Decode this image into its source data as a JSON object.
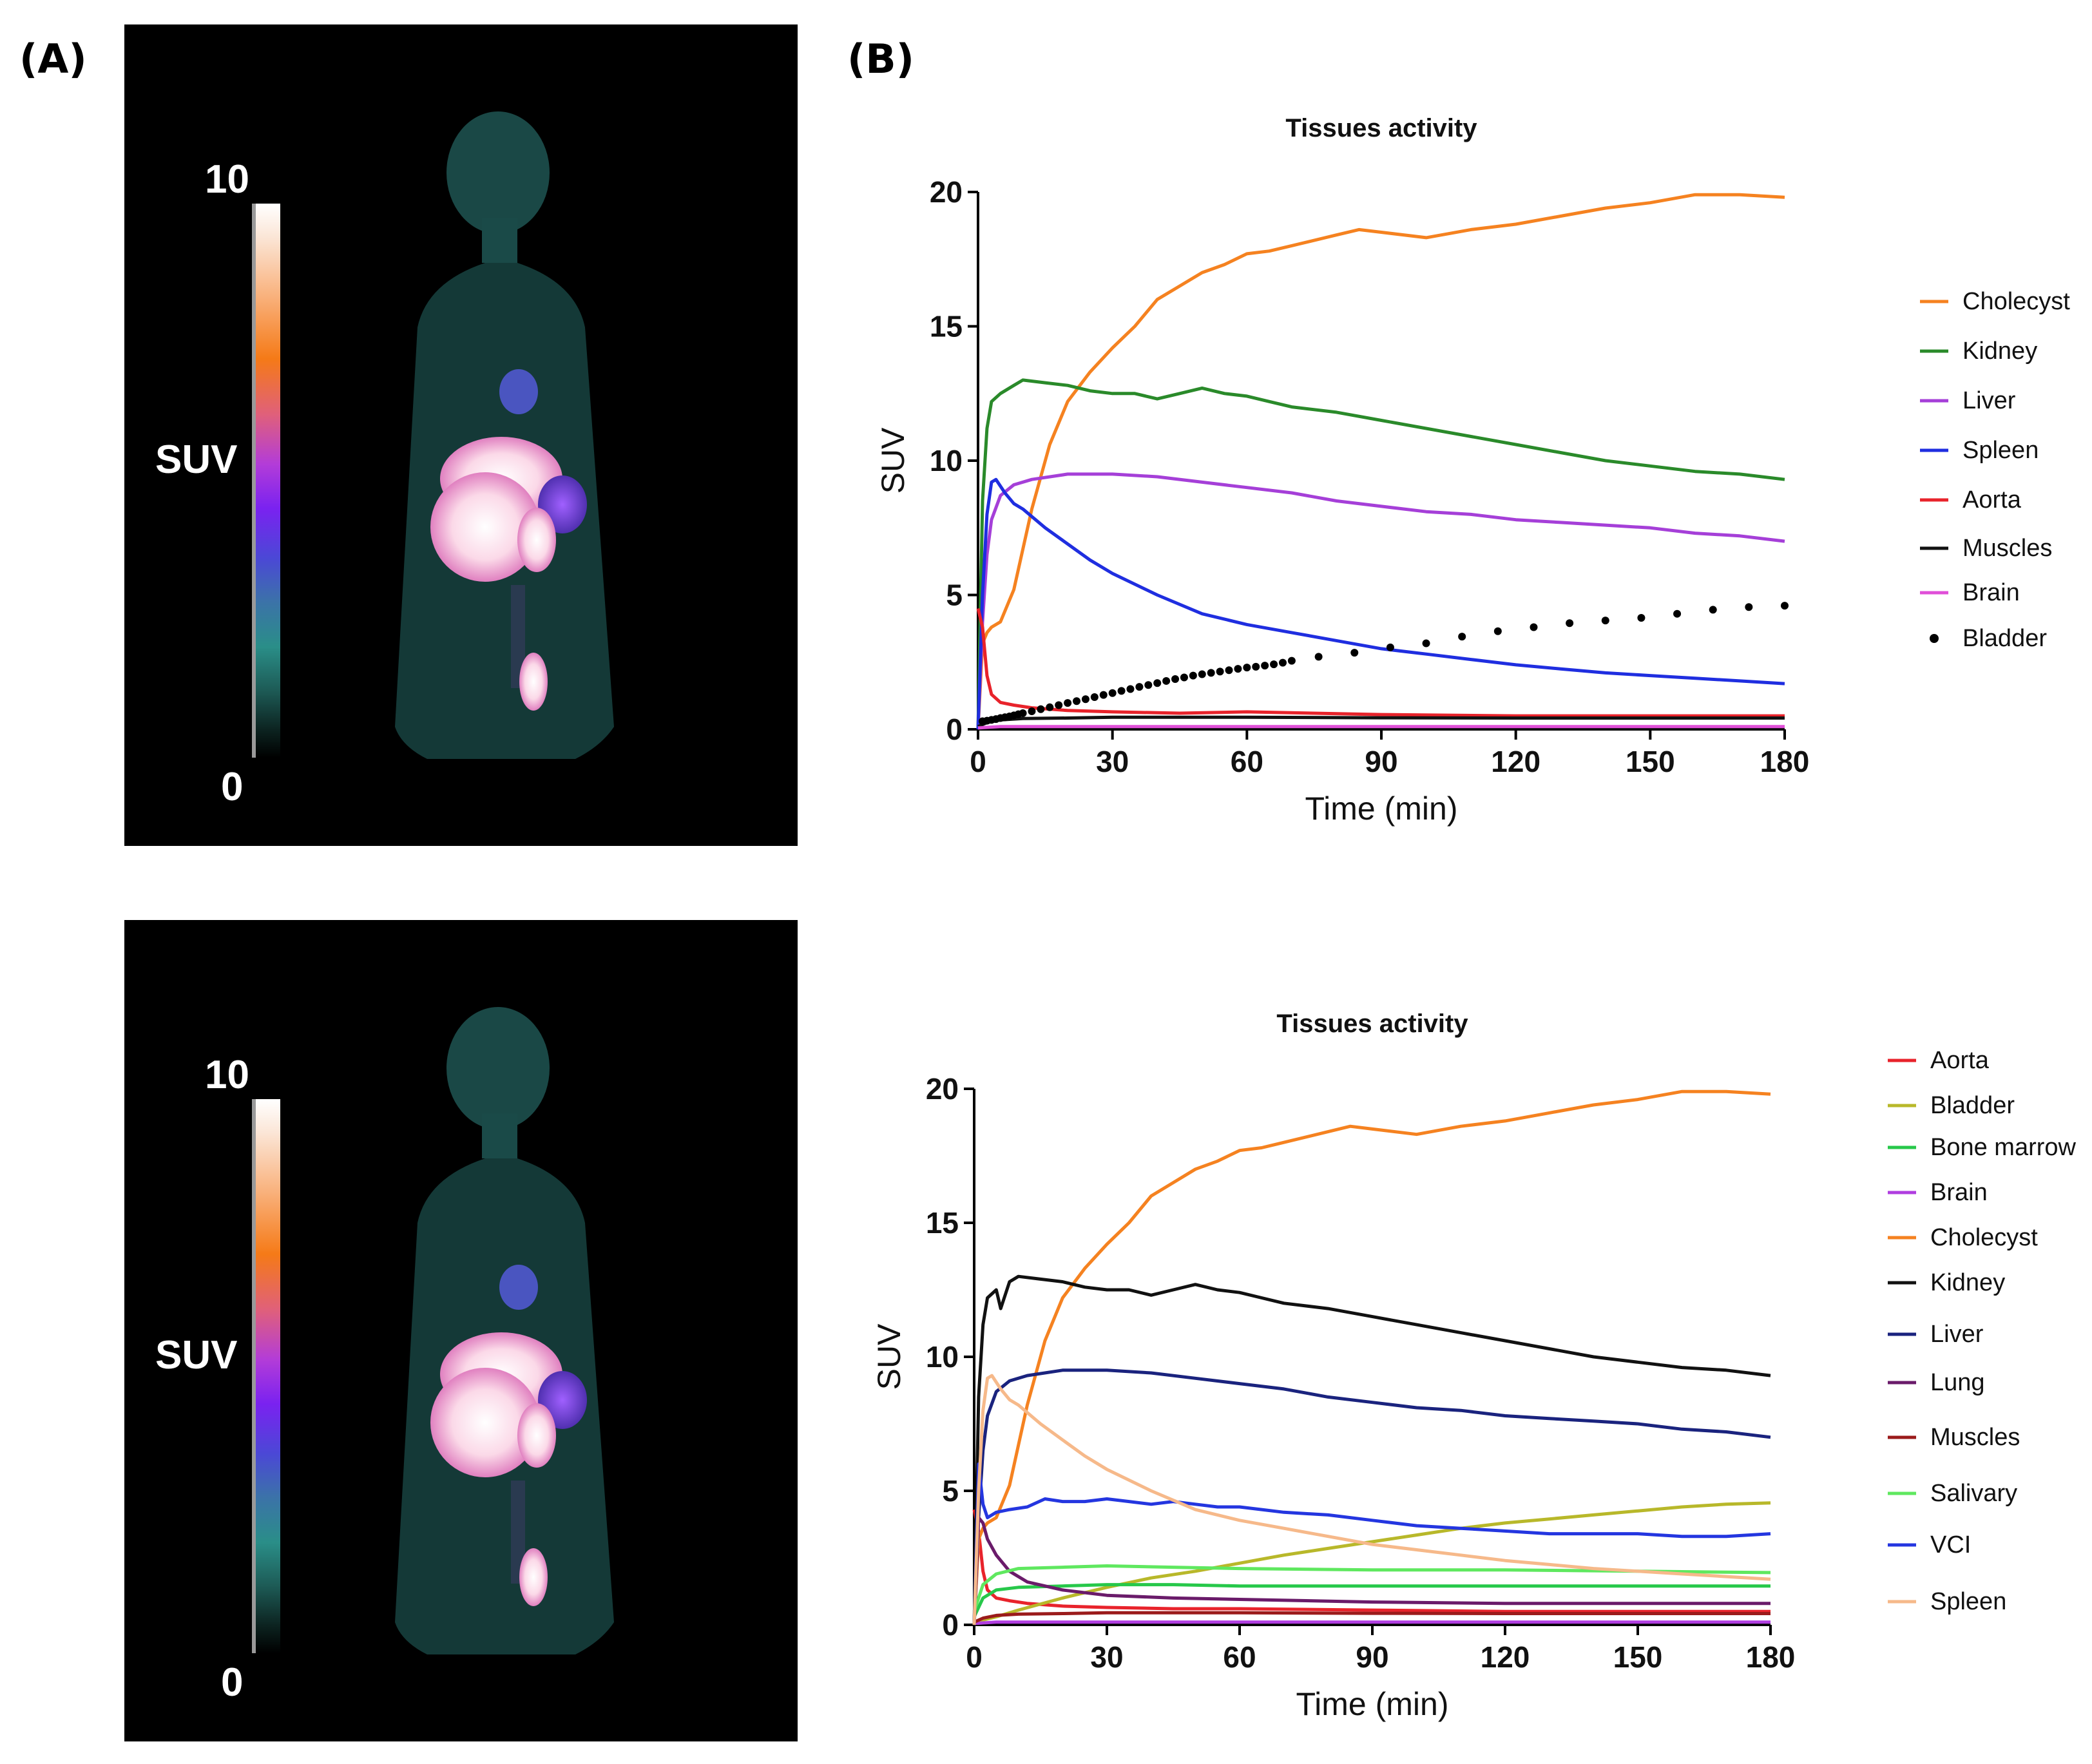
{
  "panels": {
    "a_label": "(A)",
    "b_label": "(B)"
  },
  "pet_images": [
    {
      "scale_max": "10",
      "scale_min": "0",
      "scale_label": "SUV"
    },
    {
      "scale_max": "10",
      "scale_min": "0",
      "scale_label": "SUV"
    }
  ],
  "chart_data": [
    {
      "type": "line",
      "title": "Tissues activity",
      "xlabel": "Time (min)",
      "ylabel": "SUV",
      "xlim": [
        0,
        180
      ],
      "ylim": [
        0,
        20
      ],
      "xticks": [
        0,
        30,
        60,
        90,
        120,
        150,
        180
      ],
      "yticks": [
        0,
        5,
        10,
        15,
        20
      ],
      "legend_placement": "right",
      "series": [
        {
          "name": "Cholecyst",
          "color": "#f58220",
          "x": [
            0,
            1,
            2,
            3,
            5,
            8,
            12,
            16,
            20,
            25,
            30,
            35,
            40,
            45,
            50,
            55,
            60,
            65,
            70,
            80,
            85,
            90,
            100,
            110,
            120,
            130,
            140,
            150,
            160,
            170,
            180
          ],
          "y": [
            0,
            3.2,
            3.6,
            3.8,
            4.0,
            5.2,
            8.2,
            10.6,
            12.2,
            13.3,
            14.2,
            15.0,
            16.0,
            16.5,
            17.0,
            17.3,
            17.7,
            17.8,
            18.0,
            18.4,
            18.6,
            18.5,
            18.3,
            18.6,
            18.8,
            19.1,
            19.4,
            19.6,
            19.9,
            19.9,
            19.8
          ]
        },
        {
          "name": "Kidney",
          "color": "#2a8a2a",
          "x": [
            0,
            1,
            2,
            3,
            5,
            8,
            10,
            15,
            20,
            25,
            30,
            35,
            40,
            45,
            50,
            55,
            60,
            65,
            70,
            80,
            90,
            100,
            110,
            120,
            130,
            140,
            150,
            160,
            170,
            180
          ],
          "y": [
            0,
            8.5,
            11.2,
            12.2,
            12.5,
            12.8,
            13.0,
            12.9,
            12.8,
            12.6,
            12.5,
            12.5,
            12.3,
            12.5,
            12.7,
            12.5,
            12.4,
            12.2,
            12.0,
            11.8,
            11.5,
            11.2,
            10.9,
            10.6,
            10.3,
            10.0,
            9.8,
            9.6,
            9.5,
            9.3
          ]
        },
        {
          "name": "Liver",
          "color": "#a53fd8",
          "x": [
            0,
            1,
            2,
            3,
            5,
            8,
            12,
            20,
            30,
            40,
            50,
            60,
            70,
            80,
            90,
            100,
            110,
            120,
            130,
            140,
            150,
            160,
            170,
            180
          ],
          "y": [
            0,
            4.0,
            6.5,
            7.8,
            8.7,
            9.1,
            9.3,
            9.5,
            9.5,
            9.4,
            9.2,
            9.0,
            8.8,
            8.5,
            8.3,
            8.1,
            8.0,
            7.8,
            7.7,
            7.6,
            7.5,
            7.3,
            7.2,
            7.0
          ]
        },
        {
          "name": "Spleen",
          "color": "#1f2ee0",
          "x": [
            0,
            1,
            2,
            3,
            4,
            6,
            8,
            10,
            15,
            20,
            25,
            30,
            40,
            50,
            60,
            70,
            80,
            90,
            100,
            110,
            120,
            130,
            140,
            150,
            160,
            170,
            180
          ],
          "y": [
            0,
            5.0,
            8.0,
            9.2,
            9.3,
            8.8,
            8.4,
            8.2,
            7.5,
            6.9,
            6.3,
            5.8,
            5.0,
            4.3,
            3.9,
            3.6,
            3.3,
            3.0,
            2.8,
            2.6,
            2.4,
            2.25,
            2.1,
            2.0,
            1.9,
            1.8,
            1.7
          ]
        },
        {
          "name": "Aorta",
          "color": "#e8232b",
          "x": [
            0,
            1,
            2,
            3,
            5,
            8,
            12,
            20,
            30,
            45,
            60,
            90,
            120,
            150,
            180
          ],
          "y": [
            4.5,
            3.8,
            2.0,
            1.3,
            1.0,
            0.9,
            0.8,
            0.7,
            0.65,
            0.6,
            0.65,
            0.55,
            0.5,
            0.5,
            0.5
          ]
        },
        {
          "name": "Muscles",
          "color": "#111111",
          "x": [
            0,
            2,
            5,
            10,
            20,
            30,
            45,
            60,
            90,
            120,
            150,
            180
          ],
          "y": [
            0.1,
            0.25,
            0.35,
            0.4,
            0.42,
            0.45,
            0.45,
            0.45,
            0.43,
            0.42,
            0.42,
            0.42
          ]
        },
        {
          "name": "Brain",
          "color": "#e04fd8",
          "x": [
            0,
            5,
            30,
            60,
            90,
            120,
            150,
            180
          ],
          "y": [
            0.05,
            0.1,
            0.1,
            0.1,
            0.1,
            0.1,
            0.1,
            0.1
          ]
        },
        {
          "name": "Bladder",
          "color": "#000000",
          "style": "dots",
          "x": [
            1,
            2,
            3,
            4,
            5,
            6,
            7,
            8,
            9,
            10,
            12,
            14,
            16,
            18,
            20,
            22,
            24,
            26,
            28,
            30,
            32,
            34,
            36,
            38,
            40,
            42,
            44,
            46,
            48,
            50,
            52,
            54,
            56,
            58,
            60,
            62,
            64,
            66,
            68,
            70,
            76,
            84,
            92,
            100,
            108,
            116,
            124,
            132,
            140,
            148,
            156,
            164,
            172,
            180
          ],
          "y": [
            0.3,
            0.32,
            0.35,
            0.38,
            0.42,
            0.45,
            0.48,
            0.52,
            0.56,
            0.6,
            0.67,
            0.75,
            0.82,
            0.9,
            0.98,
            1.05,
            1.12,
            1.2,
            1.28,
            1.35,
            1.43,
            1.5,
            1.58,
            1.65,
            1.72,
            1.8,
            1.87,
            1.93,
            2.0,
            2.05,
            2.1,
            2.15,
            2.2,
            2.25,
            2.3,
            2.33,
            2.37,
            2.42,
            2.48,
            2.55,
            2.7,
            2.85,
            3.05,
            3.2,
            3.45,
            3.65,
            3.8,
            3.95,
            4.05,
            4.15,
            4.3,
            4.45,
            4.55,
            4.6
          ]
        }
      ]
    },
    {
      "type": "line",
      "title": "Tissues activity",
      "xlabel": "Time (min)",
      "ylabel": "SUV",
      "xlim": [
        0,
        180
      ],
      "ylim": [
        0,
        20
      ],
      "xticks": [
        0,
        30,
        60,
        90,
        120,
        150,
        180
      ],
      "yticks": [
        0,
        5,
        10,
        15,
        20
      ],
      "legend_placement": "right",
      "series": [
        {
          "name": "Aorta",
          "color": "#e8232b",
          "x": [
            0,
            1,
            2,
            3,
            5,
            8,
            12,
            20,
            30,
            45,
            60,
            90,
            120,
            150,
            180
          ],
          "y": [
            4.3,
            3.5,
            2.0,
            1.3,
            1.0,
            0.9,
            0.8,
            0.7,
            0.65,
            0.6,
            0.6,
            0.55,
            0.5,
            0.5,
            0.5
          ]
        },
        {
          "name": "Bladder",
          "color": "#b8b82a",
          "x": [
            0,
            5,
            10,
            20,
            30,
            40,
            50,
            60,
            70,
            80,
            90,
            100,
            110,
            120,
            130,
            140,
            150,
            160,
            170,
            180
          ],
          "y": [
            0.1,
            0.3,
            0.55,
            1.0,
            1.4,
            1.75,
            2.0,
            2.3,
            2.6,
            2.85,
            3.1,
            3.35,
            3.6,
            3.8,
            3.95,
            4.1,
            4.25,
            4.4,
            4.5,
            4.55
          ]
        },
        {
          "name": "Bone marrow",
          "color": "#27c84a",
          "x": [
            0,
            2,
            5,
            10,
            20,
            30,
            45,
            60,
            90,
            120,
            150,
            180
          ],
          "y": [
            0.3,
            1.0,
            1.3,
            1.4,
            1.45,
            1.5,
            1.5,
            1.45,
            1.45,
            1.45,
            1.45,
            1.45
          ]
        },
        {
          "name": "Brain",
          "color": "#b03ee0",
          "x": [
            0,
            5,
            30,
            60,
            90,
            120,
            150,
            180
          ],
          "y": [
            0.05,
            0.1,
            0.1,
            0.1,
            0.1,
            0.1,
            0.1,
            0.1
          ]
        },
        {
          "name": "Cholecyst",
          "color": "#f58220",
          "x": [
            0,
            1,
            2,
            3,
            5,
            8,
            12,
            16,
            20,
            25,
            30,
            35,
            40,
            45,
            50,
            55,
            60,
            65,
            70,
            80,
            85,
            90,
            100,
            110,
            120,
            130,
            140,
            150,
            160,
            170,
            180
          ],
          "y": [
            0,
            3.2,
            3.6,
            3.8,
            4.0,
            5.2,
            8.2,
            10.6,
            12.2,
            13.3,
            14.2,
            15.0,
            16.0,
            16.5,
            17.0,
            17.3,
            17.7,
            17.8,
            18.0,
            18.4,
            18.6,
            18.5,
            18.3,
            18.6,
            18.8,
            19.1,
            19.4,
            19.6,
            19.9,
            19.9,
            19.8
          ]
        },
        {
          "name": "Kidney",
          "color": "#111111",
          "x": [
            0,
            1,
            2,
            3,
            5,
            6,
            8,
            10,
            15,
            20,
            25,
            30,
            35,
            40,
            45,
            50,
            55,
            60,
            65,
            70,
            80,
            90,
            100,
            110,
            120,
            130,
            140,
            150,
            160,
            170,
            180
          ],
          "y": [
            0,
            8.5,
            11.2,
            12.2,
            12.5,
            11.8,
            12.8,
            13.0,
            12.9,
            12.8,
            12.6,
            12.5,
            12.5,
            12.3,
            12.5,
            12.7,
            12.5,
            12.4,
            12.2,
            12.0,
            11.8,
            11.5,
            11.2,
            10.9,
            10.6,
            10.3,
            10.0,
            9.8,
            9.6,
            9.5,
            9.3
          ]
        },
        {
          "name": "Liver",
          "color": "#1a237e",
          "x": [
            0,
            1,
            2,
            3,
            5,
            8,
            12,
            20,
            30,
            40,
            50,
            60,
            70,
            80,
            90,
            100,
            110,
            120,
            130,
            140,
            150,
            160,
            170,
            180
          ],
          "y": [
            0,
            4.0,
            6.5,
            7.8,
            8.7,
            9.1,
            9.3,
            9.5,
            9.5,
            9.4,
            9.2,
            9.0,
            8.8,
            8.5,
            8.3,
            8.1,
            8.0,
            7.8,
            7.7,
            7.6,
            7.5,
            7.3,
            7.2,
            7.0
          ]
        },
        {
          "name": "Lung",
          "color": "#6a1b6a",
          "x": [
            0,
            1,
            2,
            3,
            5,
            8,
            12,
            20,
            30,
            45,
            60,
            90,
            120,
            150,
            180
          ],
          "y": [
            0,
            4.0,
            3.8,
            3.2,
            2.6,
            2.0,
            1.6,
            1.3,
            1.1,
            1.0,
            0.95,
            0.85,
            0.8,
            0.8,
            0.8
          ]
        },
        {
          "name": "Muscles",
          "color": "#9b1b1b",
          "x": [
            0,
            2,
            5,
            10,
            20,
            30,
            45,
            60,
            90,
            120,
            150,
            180
          ],
          "y": [
            0.1,
            0.25,
            0.35,
            0.4,
            0.42,
            0.45,
            0.45,
            0.45,
            0.43,
            0.42,
            0.42,
            0.42
          ]
        },
        {
          "name": "Salivary",
          "color": "#5fe85f",
          "x": [
            0,
            2,
            5,
            10,
            20,
            30,
            45,
            60,
            90,
            120,
            150,
            180
          ],
          "y": [
            0.5,
            1.5,
            1.9,
            2.1,
            2.15,
            2.2,
            2.15,
            2.1,
            2.05,
            2.05,
            2.0,
            1.95
          ]
        },
        {
          "name": "VCI",
          "color": "#2436e0",
          "x": [
            0,
            1,
            2,
            3,
            5,
            8,
            12,
            16,
            20,
            25,
            30,
            35,
            40,
            45,
            50,
            55,
            60,
            65,
            70,
            80,
            90,
            100,
            110,
            120,
            130,
            140,
            150,
            160,
            170,
            180
          ],
          "y": [
            0,
            6.0,
            4.5,
            4.0,
            4.2,
            4.3,
            4.4,
            4.7,
            4.6,
            4.6,
            4.7,
            4.6,
            4.5,
            4.6,
            4.5,
            4.4,
            4.4,
            4.3,
            4.2,
            4.1,
            3.9,
            3.7,
            3.6,
            3.5,
            3.4,
            3.4,
            3.4,
            3.3,
            3.3,
            3.4
          ]
        },
        {
          "name": "Spleen",
          "color": "#f6b98a",
          "x": [
            0,
            1,
            2,
            3,
            4,
            6,
            8,
            10,
            15,
            20,
            25,
            30,
            40,
            50,
            60,
            70,
            80,
            90,
            100,
            110,
            120,
            130,
            140,
            150,
            160,
            170,
            180
          ],
          "y": [
            0,
            5.0,
            8.0,
            9.2,
            9.3,
            8.8,
            8.4,
            8.2,
            7.5,
            6.9,
            6.3,
            5.8,
            5.0,
            4.3,
            3.9,
            3.6,
            3.3,
            3.0,
            2.8,
            2.6,
            2.4,
            2.25,
            2.1,
            2.0,
            1.9,
            1.8,
            1.7
          ]
        }
      ]
    }
  ]
}
